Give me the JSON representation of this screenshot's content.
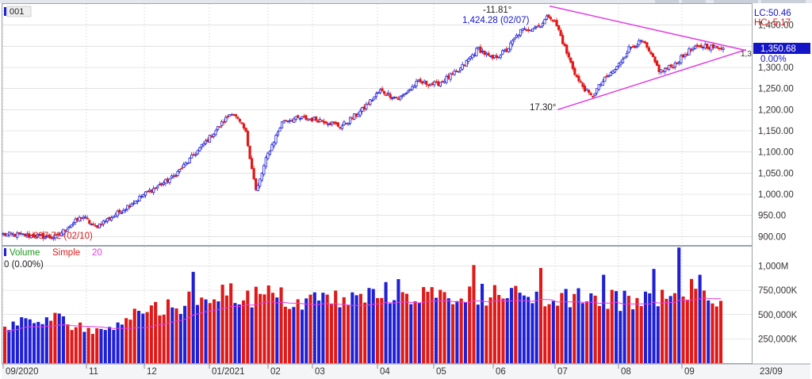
{
  "header": {
    "symbol": "001",
    "last_price": "1,350.68",
    "last_change": "0.00%",
    "lc_label": "LC:50.46",
    "hc_label": "HC:-5.17",
    "cut_price_label": "1,3"
  },
  "annotations": {
    "high": "1,424.28 (02/07)",
    "low": "897.72 (02/10)",
    "upper_angle": "-11.81°",
    "lower_angle": "17.30°"
  },
  "volume_header": {
    "label": "Volume",
    "ma_type": "Simple",
    "ma_period": "20",
    "current": "0 (0.00%)"
  },
  "colors": {
    "up": "#1f1fd6",
    "down": "#e01818",
    "trendline": "#e23ee2",
    "ma": "#e23ee2",
    "grid": "#d0d0d0",
    "price_tag": "#1515c8"
  },
  "chart_data": [
    {
      "type": "candlestick",
      "title": "",
      "x_tick_labels": [
        "09/2020",
        "11",
        "12",
        "01/2021",
        "02",
        "03",
        "04",
        "05",
        "06",
        "07",
        "08",
        "09",
        "23/09"
      ],
      "y_tick_labels": [
        "900.00",
        "950.00",
        "1,000.00",
        "1,050.00",
        "1,100.00",
        "1,150.00",
        "1,200.00",
        "1,250.00",
        "1,300.00",
        "1,350.00",
        "1,400.00"
      ],
      "ylim": [
        880,
        1450
      ],
      "grid": true,
      "trend_anchors": [
        [
          "2020-09-01",
          905
        ],
        [
          "2020-09-25",
          902
        ],
        [
          "2020-10-10",
          897.72
        ],
        [
          "2020-10-20",
          925
        ],
        [
          "2020-10-30",
          948
        ],
        [
          "2020-11-08",
          922
        ],
        [
          "2020-11-25",
          955
        ],
        [
          "2020-12-15",
          1000
        ],
        [
          "2021-01-05",
          1040
        ],
        [
          "2021-01-20",
          1090
        ],
        [
          "2021-02-03",
          1140
        ],
        [
          "2021-02-18",
          1195
        ],
        [
          "2021-02-28",
          1150
        ],
        [
          "2021-03-08",
          1005
        ],
        [
          "2021-03-16",
          1090
        ],
        [
          "2021-03-28",
          1175
        ],
        [
          "2021-04-12",
          1180
        ],
        [
          "2021-04-26",
          1175
        ],
        [
          "2021-05-10",
          1160
        ],
        [
          "2021-05-26",
          1200
        ],
        [
          "2021-06-08",
          1245
        ],
        [
          "2021-06-22",
          1225
        ],
        [
          "2021-07-06",
          1265
        ],
        [
          "2021-07-20",
          1260
        ],
        [
          "2021-08-05",
          1290
        ],
        [
          "2021-08-20",
          1345
        ],
        [
          "2021-08-30",
          1320
        ],
        [
          "2021-09-10",
          1340
        ],
        [
          "2021-09-20",
          1385
        ],
        [
          "2021-10-05",
          1400
        ],
        [
          "2021-10-12",
          1424.28
        ],
        [
          "2021-10-18",
          1395
        ],
        [
          "2021-10-24",
          1340
        ],
        [
          "2021-11-02",
          1270
        ],
        [
          "2021-11-12",
          1230
        ],
        [
          "2021-11-20",
          1265
        ],
        [
          "2021-12-01",
          1300
        ],
        [
          "2021-12-10",
          1345
        ],
        [
          "2021-12-20",
          1362
        ],
        [
          "2021-12-26",
          1330
        ],
        [
          "2022-01-02",
          1290
        ],
        [
          "2022-01-12",
          1305
        ],
        [
          "2022-01-24",
          1340
        ],
        [
          "2022-02-04",
          1352
        ],
        [
          "2022-02-14",
          1345
        ],
        [
          "2022-02-18",
          1350.68
        ]
      ],
      "high_point": {
        "date": "2021-10-12",
        "value": 1424.28
      },
      "low_point": {
        "date": "2020-10-10",
        "value": 897.72
      },
      "trendlines": [
        {
          "name": "upper",
          "from": [
            "2021-10-12",
            1445
          ],
          "to": [
            "2022-03-07",
            1340
          ]
        },
        {
          "name": "lower",
          "from": [
            "2021-10-18",
            1200
          ],
          "to": [
            "2022-03-07",
            1342
          ]
        }
      ]
    },
    {
      "type": "bar",
      "y_tick_labels": [
        "250,000K",
        "500,000K",
        "750,000K",
        "1,000M"
      ],
      "ylim": [
        0,
        1200000000
      ],
      "volume_levels": [
        [
          0,
          410
        ],
        [
          6,
          430
        ],
        [
          12,
          470
        ],
        [
          18,
          400
        ],
        [
          22,
          320
        ],
        [
          28,
          480
        ],
        [
          34,
          570
        ],
        [
          40,
          600
        ],
        [
          46,
          700
        ],
        [
          52,
          760
        ],
        [
          58,
          700
        ],
        [
          64,
          720
        ],
        [
          70,
          630
        ],
        [
          76,
          690
        ],
        [
          82,
          660
        ],
        [
          88,
          720
        ],
        [
          94,
          760
        ],
        [
          100,
          720
        ],
        [
          106,
          690
        ],
        [
          112,
          760
        ],
        [
          118,
          720
        ],
        [
          124,
          700
        ],
        [
          130,
          650
        ],
        [
          136,
          680
        ],
        [
          142,
          700
        ],
        [
          148,
          660
        ],
        [
          154,
          720
        ],
        [
          160,
          710
        ],
        [
          164,
          780
        ],
        [
          168,
          650
        ],
        [
          171,
          730
        ]
      ],
      "volume_spikes": [
        [
          45,
          940
        ],
        [
          112,
          1010
        ],
        [
          155,
          970
        ],
        [
          143,
          910
        ],
        [
          161,
          1190
        ],
        [
          166,
          910
        ],
        [
          128,
          980
        ]
      ]
    }
  ]
}
